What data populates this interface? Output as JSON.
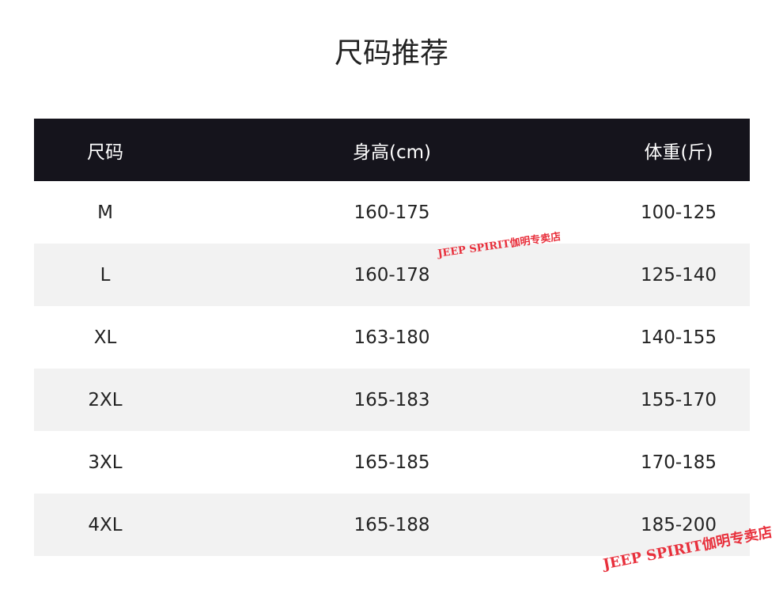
{
  "title": "尺码推荐",
  "table": {
    "headers": [
      "尺码",
      "身高(cm)",
      "体重(斤)"
    ],
    "rows": [
      [
        "M",
        "160-175",
        "100-125"
      ],
      [
        "L",
        "160-178",
        "125-140"
      ],
      [
        "XL",
        "163-180",
        "140-155"
      ],
      [
        "2XL",
        "165-183",
        "155-170"
      ],
      [
        "3XL",
        "165-185",
        "170-185"
      ],
      [
        "4XL",
        "165-188",
        "185-200"
      ]
    ]
  },
  "watermarks": [
    "JEEP SPIRIT伽明专卖店",
    "JEEP SPIRIT伽明专卖店"
  ],
  "colors": {
    "header_bg": "#15141c",
    "alt_row_bg": "#f2f2f2",
    "watermark": "#e8303c"
  }
}
